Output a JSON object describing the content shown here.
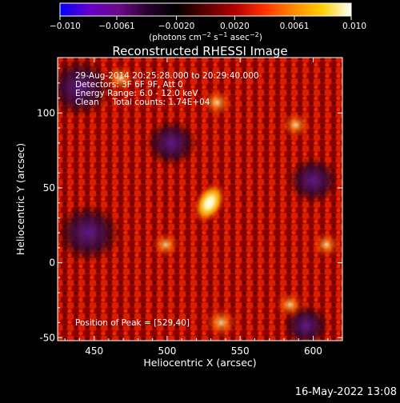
{
  "chart_data": {
    "type": "heatmap",
    "title": "Reconstructed RHESSI Image",
    "xlabel": "Heliocentric X (arcsec)",
    "ylabel": "Heliocentric Y (arcsec)",
    "xlim": [
      425,
      620
    ],
    "ylim": [
      -52,
      137
    ],
    "xticks": [
      450,
      500,
      550,
      600
    ],
    "yticks": [
      -50,
      0,
      50,
      100
    ],
    "colorbar": {
      "range": [
        -0.01,
        0.01
      ],
      "tick_values": [
        -0.01,
        -0.0061,
        -0.002,
        0.002,
        0.0061,
        0.01
      ],
      "tick_labels": [
        "−0.010",
        "−0.0061",
        "−0.0020",
        "0.0020",
        "0.0061",
        "0.010"
      ],
      "unit_html": "(photons cm<tspan dy='-4' font-size='8'>−2</tspan><tspan dy='4'> s</tspan><tspan dy='-4' font-size='8'>−1</tspan><tspan dy='4'> asec</tspan><tspan dy='-4' font-size='8'>−2</tspan><tspan dy='4'>)</tspan>",
      "colormap": [
        "#0000ff",
        "#6600cc",
        "#6b0a8a",
        "#2a0030",
        "#000000",
        "#5a0000",
        "#b00000",
        "#ff3000",
        "#ff8800",
        "#ffd000",
        "#ffffff"
      ]
    },
    "sources": [
      {
        "name": "peak",
        "x": 529,
        "y": 40,
        "amplitude": 0.01
      },
      {
        "x": 537,
        "y": -40,
        "amplitude": 0.0062
      },
      {
        "x": 534,
        "y": 107,
        "amplitude": 0.0052
      },
      {
        "x": 468,
        "y": 123,
        "amplitude": 0.0045
      },
      {
        "x": 588,
        "y": 92,
        "amplitude": 0.004
      },
      {
        "x": 584,
        "y": -28,
        "amplitude": 0.0036
      },
      {
        "x": 609,
        "y": 12,
        "amplitude": 0.0035
      },
      {
        "x": 499,
        "y": 12,
        "amplitude": 0.0032
      }
    ],
    "negative_regions": [
      {
        "x": 440,
        "y": 117,
        "amplitude": -0.006
      },
      {
        "x": 446,
        "y": 20,
        "amplitude": -0.006
      },
      {
        "x": 503,
        "y": 80,
        "amplitude": -0.0048
      },
      {
        "x": 600,
        "y": 55,
        "amplitude": -0.0048
      },
      {
        "x": 595,
        "y": -42,
        "amplitude": -0.0043
      }
    ],
    "annotations": [
      "29-Aug-2014 20:25:28.000 to 20:29:40.000",
      "Detectors: 3F 6F 9F, Att 0",
      "Energy Range: 6.0 - 12.0 keV",
      "Clean     Total counts: 1.74E+04",
      "Position of Peak = [529,40]"
    ]
  },
  "footer": {
    "timestamp": "16-May-2022 13:08"
  }
}
